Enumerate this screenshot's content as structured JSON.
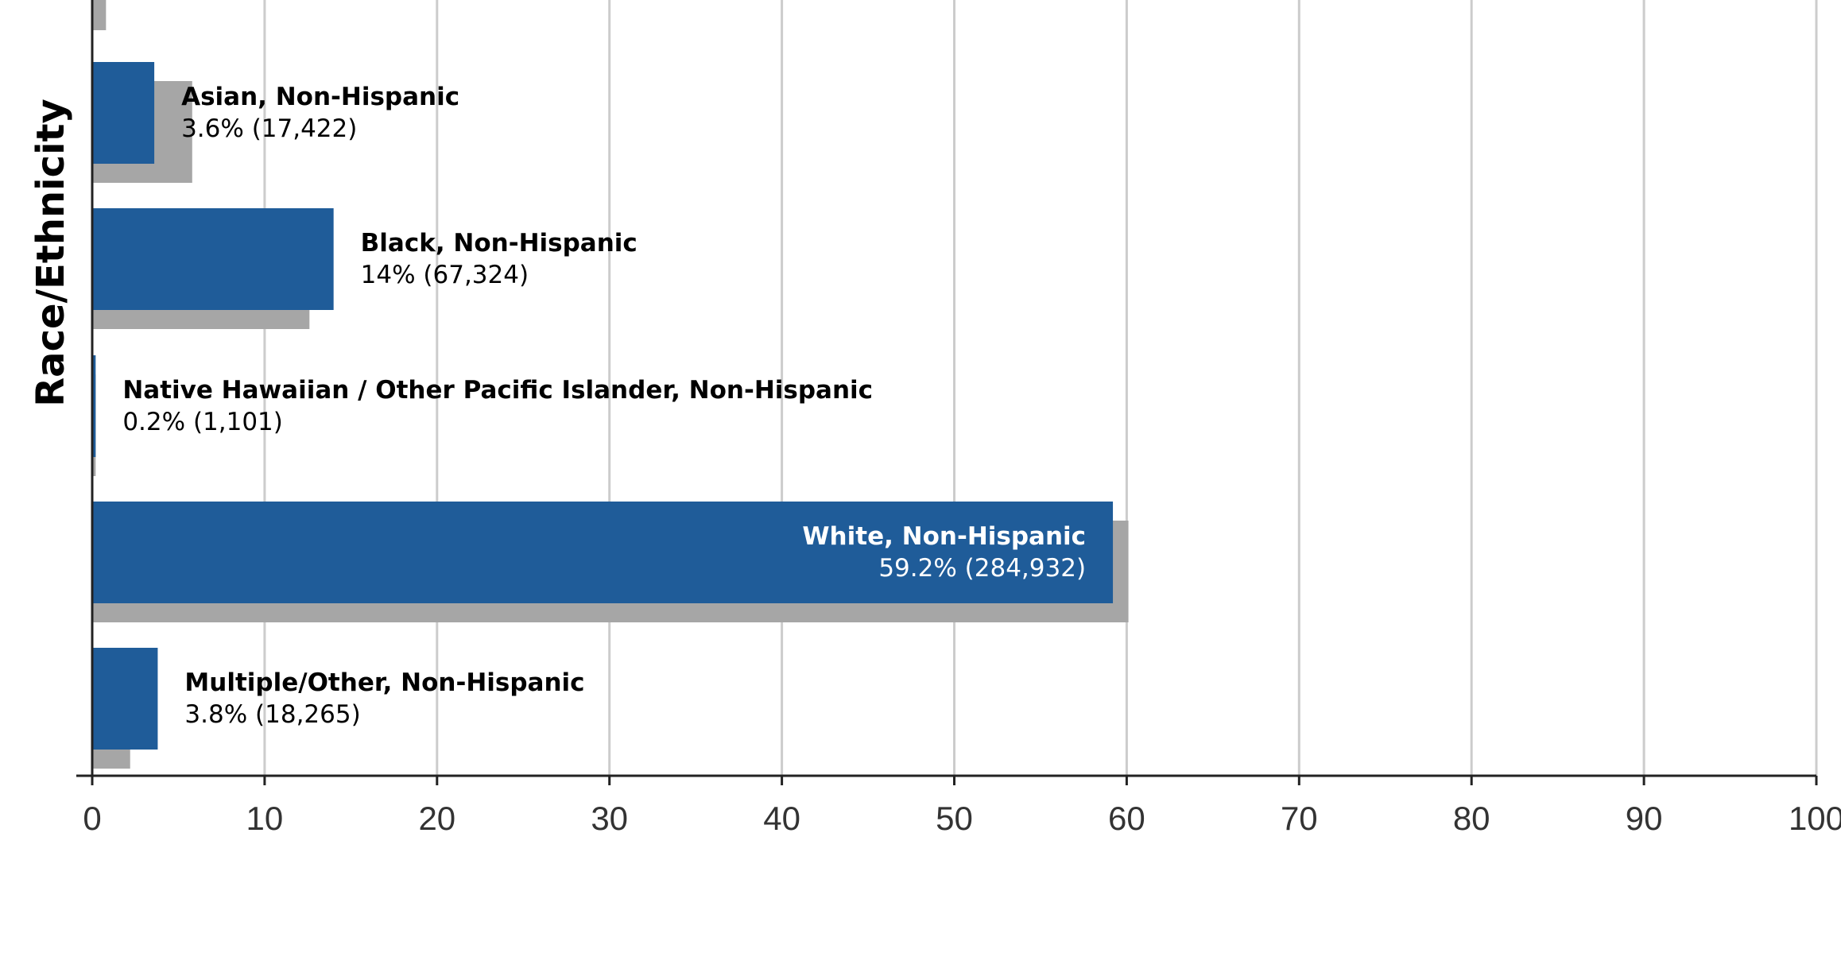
{
  "chart_data": {
    "type": "bar",
    "orientation": "horizontal",
    "title": "",
    "xlabel": "",
    "ylabel": "Race/Ethnicity",
    "xlim": [
      0,
      100
    ],
    "x_ticks": [
      "0",
      "10",
      "20",
      "30",
      "40",
      "50",
      "60",
      "70",
      "80",
      "90",
      "100"
    ],
    "grid": true,
    "colors": {
      "primary": "#1f5c99",
      "comparison": "#a6a6a6"
    },
    "categories": [
      "",
      "Asian, Non-Hispanic",
      "Black, Non-Hispanic",
      "Native Hawaiian / Other Pacific Islander, Non-Hispanic",
      "White, Non-Hispanic",
      "Multiple/Other, Non-Hispanic"
    ],
    "series": [
      {
        "values": [
          null,
          3.6,
          14,
          0.2,
          59.2,
          3.8
        ]
      },
      {
        "values": [
          0.8,
          5.8,
          12.6,
          0.2,
          60.1,
          2.2
        ]
      }
    ],
    "value_labels": [
      "",
      "3.6% (17,422)",
      "14% (67,324)",
      "0.2% (1,101)",
      "59.2% (284,932)",
      "3.8% (18,265)"
    ]
  }
}
